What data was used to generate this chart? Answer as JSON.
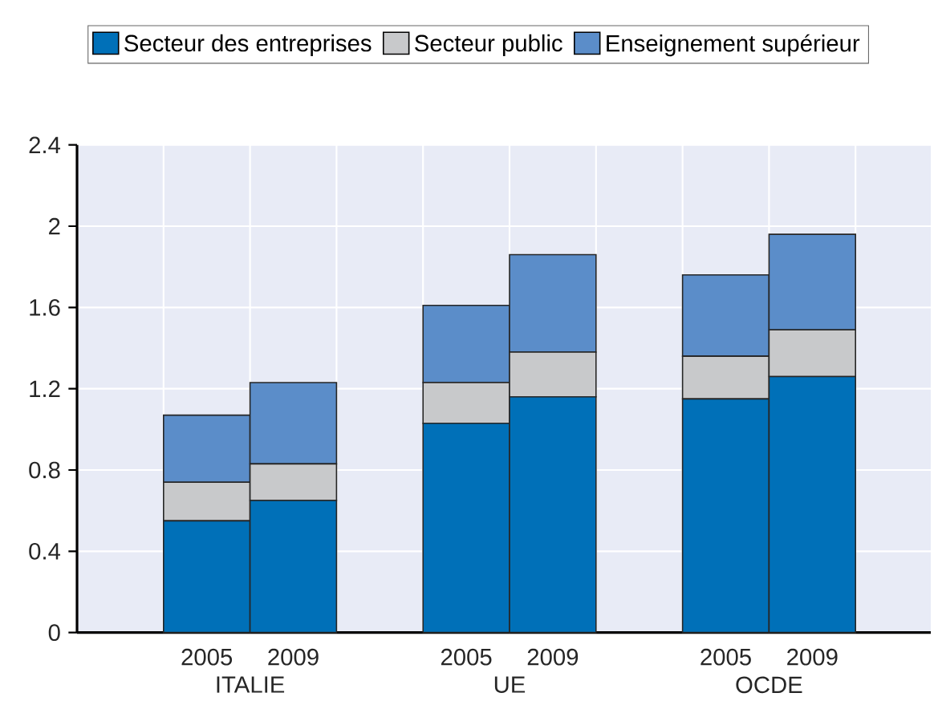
{
  "chart_data": {
    "type": "bar",
    "stacked": true,
    "categories": [
      "2005",
      "2009",
      null,
      "2005",
      "2009",
      null,
      "2005",
      "2009"
    ],
    "series": [
      {
        "name": "Secteur des entreprises",
        "color": "#0070b8",
        "values": [
          0.55,
          0.65,
          null,
          1.03,
          1.16,
          null,
          1.15,
          1.26
        ]
      },
      {
        "name": "Secteur public",
        "color": "#c8c9cb",
        "values": [
          0.19,
          0.18,
          null,
          0.2,
          0.22,
          null,
          0.21,
          0.23
        ]
      },
      {
        "name": "Enseignement supérieur",
        "color": "#5b8dc9",
        "values": [
          0.33,
          0.4,
          null,
          0.38,
          0.48,
          null,
          0.4,
          0.47
        ]
      }
    ],
    "annotations": [
      "ITALIE",
      "UE",
      "OCDE"
    ],
    "ylim": [
      0,
      2.4
    ],
    "yticks": [
      0,
      0.4,
      0.8,
      1.2,
      1.6,
      2,
      2.4
    ],
    "grid": true,
    "legend": "top"
  }
}
